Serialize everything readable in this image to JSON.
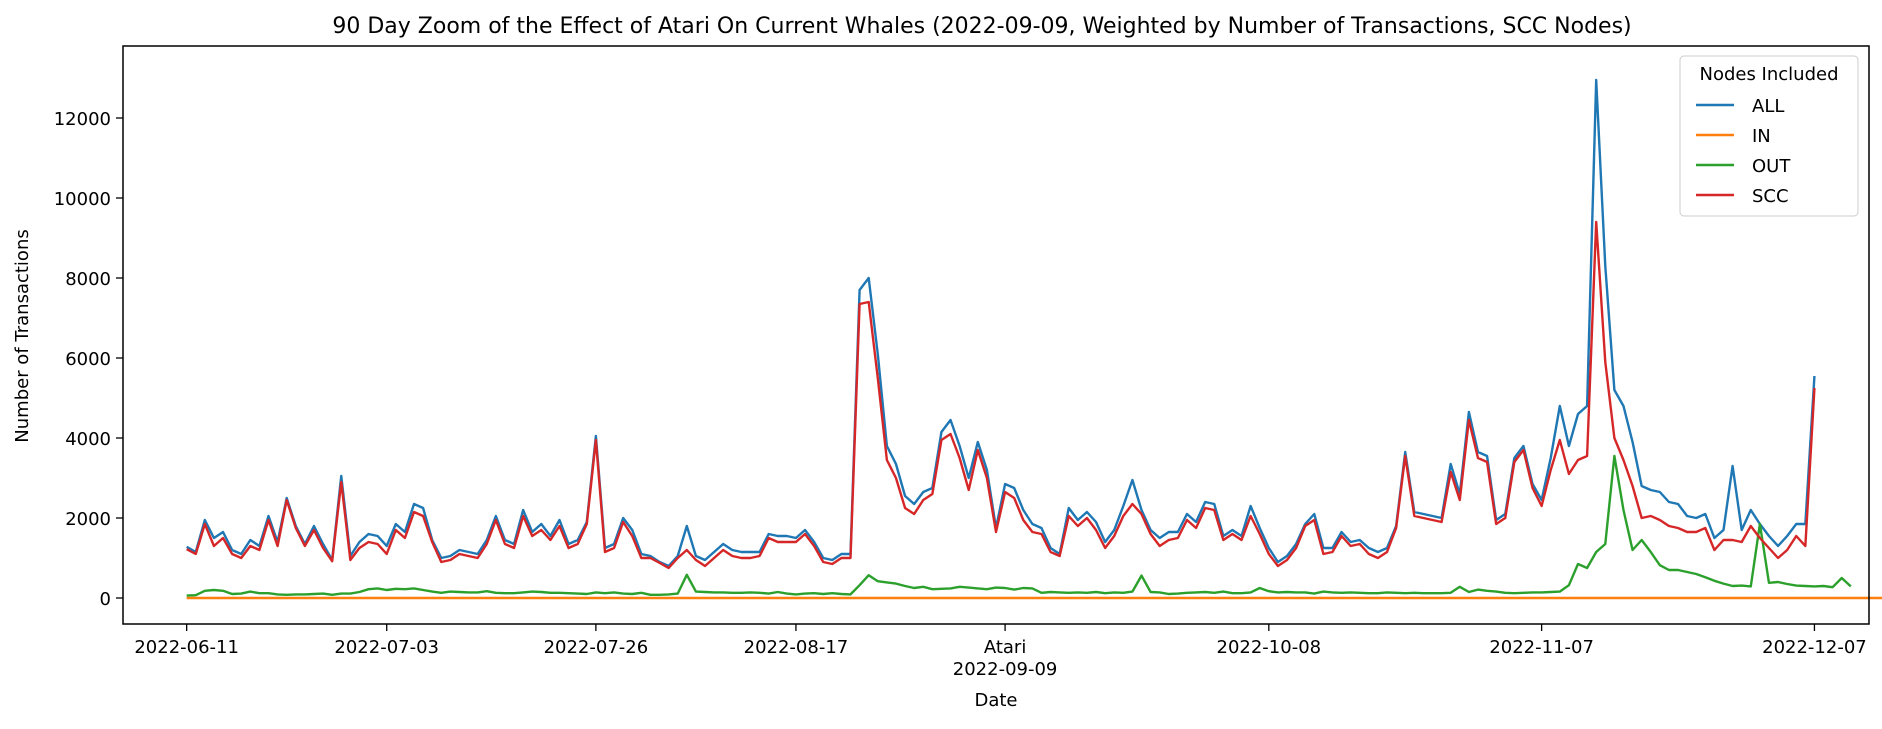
{
  "chart_data": {
    "type": "line",
    "title": "90 Day Zoom of the Effect of Atari On Current Whales (2022-09-09, Weighted by Number of Transactions, SCC Nodes)",
    "xlabel": "Date",
    "ylabel": "Number of Transactions",
    "ylim": [
      -650,
      13800
    ],
    "yticks": [
      0,
      2000,
      4000,
      6000,
      8000,
      10000,
      12000
    ],
    "xlim_days": [
      -97,
      95
    ],
    "x_start_date": "2022-06-11",
    "x_end_date": "2022-12-07",
    "xticks": [
      {
        "label": "2022-06-11",
        "day": -90
      },
      {
        "label": "2022-07-03",
        "day": -68
      },
      {
        "label": "2022-07-26",
        "day": -45
      },
      {
        "label": "2022-08-17",
        "day": -23
      },
      {
        "label": "Atari",
        "day": 0,
        "sublabel": "2022-09-09"
      },
      {
        "label": "2022-10-08",
        "day": 29
      },
      {
        "label": "2022-11-07",
        "day": 59
      },
      {
        "label": "2022-12-07",
        "day": 89
      }
    ],
    "legend": {
      "title": "Nodes Included",
      "position": "top-right"
    },
    "grid": false,
    "series": [
      {
        "name": "ALL",
        "color": "#1f77b4",
        "values": [
          1280,
          1150,
          1950,
          1500,
          1650,
          1200,
          1100,
          1450,
          1300,
          2050,
          1400,
          2500,
          1800,
          1350,
          1800,
          1350,
          950,
          3050,
          1050,
          1400,
          1600,
          1550,
          1300,
          1850,
          1650,
          2350,
          2250,
          1450,
          1000,
          1050,
          1200,
          1150,
          1100,
          1450,
          2050,
          1450,
          1350,
          2200,
          1650,
          1850,
          1550,
          1950,
          1350,
          1450,
          1900,
          4050,
          1250,
          1350,
          2000,
          1700,
          1100,
          1050,
          900,
          800,
          1050,
          1800,
          1050,
          950,
          1150,
          1350,
          1200,
          1150,
          1150,
          1150,
          1600,
          1550,
          1550,
          1500,
          1700,
          1400,
          1000,
          950,
          1100,
          1100,
          7700,
          8000,
          6100,
          3800,
          3350,
          2550,
          2350,
          2650,
          2750,
          4150,
          4450,
          3800,
          3000,
          3900,
          3200,
          1750,
          2850,
          2750,
          2200,
          1850,
          1750,
          1250,
          1100,
          2250,
          1950,
          2150,
          1900,
          1400,
          1700,
          2300,
          2950,
          2200,
          1700,
          1500,
          1650,
          1650,
          2100,
          1900,
          2400,
          2350,
          1550,
          1700,
          1550,
          2300,
          1750,
          1250,
          900,
          1050,
          1350,
          1850,
          2100,
          1250,
          1250,
          1650,
          1400,
          1450,
          1250,
          1150,
          1250,
          1800,
          3650,
          2150,
          2100,
          2050,
          2000,
          3350,
          2600,
          4650,
          3650,
          3550,
          1950,
          2100,
          3500,
          3800,
          2850,
          2450,
          3500,
          4800,
          3800,
          4600,
          4800,
          12950,
          8300,
          5200,
          4800,
          3900,
          2800,
          2700,
          2650,
          2400,
          2350,
          2050,
          2000,
          2100,
          1500,
          1700,
          3300,
          1700,
          2200,
          1850,
          1550,
          1300,
          1550,
          1850,
          1850,
          5550
        ]
      },
      {
        "name": "IN",
        "color": "#ff7f0e",
        "values": [
          0,
          0,
          0,
          0,
          0,
          0,
          0,
          0,
          0,
          0,
          0,
          0,
          0,
          0,
          0,
          0,
          0,
          0,
          0,
          0,
          0,
          0,
          0,
          0,
          0,
          0,
          0,
          0,
          0,
          0,
          0,
          0,
          0,
          0,
          0,
          0,
          0,
          0,
          0,
          0,
          0,
          0,
          0,
          0,
          0,
          0,
          0,
          0,
          0,
          0,
          0,
          0,
          0,
          0,
          0,
          0,
          0,
          0,
          0,
          0,
          0,
          0,
          0,
          0,
          0,
          0,
          0,
          0,
          0,
          0,
          0,
          0,
          0,
          0,
          0,
          0,
          0,
          0,
          0,
          0,
          0,
          0,
          0,
          0,
          0,
          0,
          0,
          0,
          0,
          0,
          0,
          0,
          0,
          0,
          0,
          0,
          0,
          0,
          0,
          0,
          0,
          0,
          0,
          0,
          0,
          0,
          0,
          0,
          0,
          0,
          0,
          0,
          0,
          0,
          0,
          0,
          0,
          0,
          0,
          0,
          0,
          0,
          0,
          0,
          0,
          0,
          0,
          0,
          0,
          0,
          0,
          0,
          0,
          0,
          0,
          0,
          0,
          0,
          0,
          0,
          0,
          0,
          0,
          0,
          0,
          0,
          0,
          0,
          0,
          0,
          0,
          0,
          0,
          0,
          0,
          0,
          0,
          0,
          0,
          0,
          0,
          0,
          0,
          0,
          0,
          0,
          0,
          0,
          0,
          0,
          0,
          0,
          0,
          0,
          0,
          0,
          0,
          0,
          0,
          0,
          0,
          0,
          0,
          0,
          0,
          0,
          0,
          0
        ]
      },
      {
        "name": "OUT",
        "color": "#2ca02c",
        "values": [
          60,
          70,
          180,
          200,
          180,
          100,
          110,
          160,
          120,
          120,
          90,
          80,
          90,
          90,
          100,
          110,
          80,
          110,
          110,
          150,
          220,
          240,
          200,
          230,
          220,
          240,
          200,
          160,
          130,
          160,
          150,
          140,
          140,
          170,
          130,
          120,
          120,
          140,
          160,
          150,
          130,
          130,
          120,
          110,
          100,
          140,
          120,
          140,
          110,
          100,
          130,
          80,
          80,
          90,
          110,
          580,
          160,
          150,
          140,
          140,
          130,
          130,
          140,
          130,
          110,
          150,
          110,
          90,
          110,
          120,
          100,
          120,
          100,
          90,
          320,
          570,
          420,
          390,
          360,
          300,
          250,
          280,
          220,
          230,
          240,
          280,
          260,
          240,
          220,
          260,
          250,
          210,
          250,
          240,
          130,
          150,
          140,
          130,
          140,
          130,
          150,
          120,
          140,
          130,
          160,
          560,
          150,
          140,
          100,
          110,
          130,
          140,
          150,
          130,
          160,
          120,
          120,
          140,
          250,
          170,
          140,
          150,
          140,
          140,
          110,
          160,
          140,
          130,
          140,
          130,
          120,
          120,
          140,
          130,
          120,
          130,
          120,
          120,
          120,
          130,
          280,
          150,
          210,
          180,
          160,
          130,
          120,
          130,
          140,
          140,
          150,
          160,
          320,
          850,
          750,
          1150,
          1350,
          3550,
          2200,
          1200,
          1450,
          1150,
          820,
          700,
          700,
          650,
          600,
          520,
          430,
          360,
          300,
          310,
          290,
          1850,
          380,
          400,
          350,
          310,
          300,
          290,
          300,
          270,
          500,
          290
        ]
      },
      {
        "name": "SCC",
        "color": "#d62728",
        "values": [
          1220,
          1100,
          1850,
          1300,
          1500,
          1100,
          1000,
          1300,
          1200,
          1950,
          1300,
          2450,
          1750,
          1300,
          1700,
          1250,
          920,
          2900,
          950,
          1250,
          1400,
          1350,
          1100,
          1700,
          1500,
          2150,
          2050,
          1400,
          900,
          950,
          1100,
          1050,
          1000,
          1350,
          1950,
          1350,
          1250,
          2050,
          1550,
          1700,
          1450,
          1800,
          1250,
          1350,
          1850,
          3950,
          1150,
          1250,
          1900,
          1550,
          1000,
          1000,
          880,
          750,
          1000,
          1200,
          950,
          800,
          1000,
          1200,
          1050,
          1000,
          1000,
          1050,
          1500,
          1400,
          1400,
          1400,
          1600,
          1300,
          900,
          850,
          1000,
          1000,
          7350,
          7400,
          5500,
          3450,
          3000,
          2250,
          2100,
          2450,
          2600,
          3950,
          4100,
          3500,
          2700,
          3700,
          3000,
          1650,
          2650,
          2500,
          1950,
          1650,
          1600,
          1150,
          1050,
          2050,
          1800,
          2000,
          1700,
          1250,
          1550,
          2050,
          2350,
          2100,
          1600,
          1300,
          1450,
          1500,
          1950,
          1750,
          2250,
          2200,
          1450,
          1600,
          1450,
          2050,
          1600,
          1100,
          800,
          950,
          1250,
          1800,
          1950,
          1100,
          1150,
          1550,
          1300,
          1350,
          1100,
          1000,
          1150,
          1750,
          3550,
          2050,
          2000,
          1950,
          1900,
          3150,
          2450,
          4450,
          3500,
          3400,
          1850,
          2000,
          3400,
          3700,
          2750,
          2300,
          3200,
          3950,
          3100,
          3450,
          3550,
          9400,
          5900,
          4000,
          3450,
          2800,
          2000,
          2050,
          1950,
          1800,
          1750,
          1650,
          1650,
          1750,
          1200,
          1450,
          1450,
          1400,
          1800,
          1500,
          1250,
          1000,
          1200,
          1550,
          1300,
          5250
        ]
      }
    ]
  }
}
